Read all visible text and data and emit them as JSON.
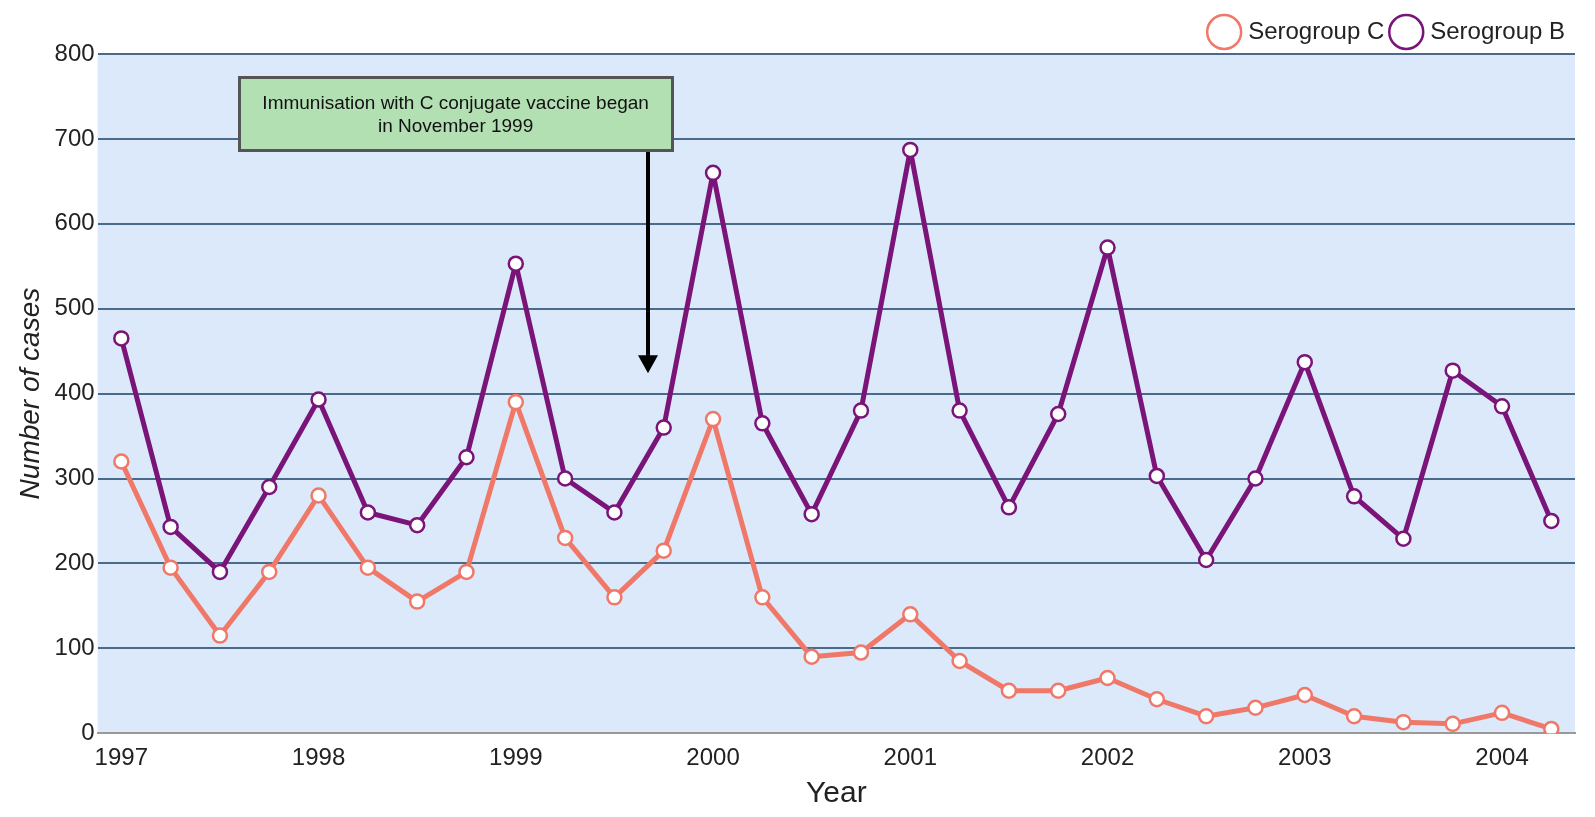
{
  "chart_data": {
    "type": "line",
    "xlabel": "Year",
    "ylabel": "Number of cases",
    "x": [
      1997,
      1997.25,
      1997.5,
      1997.75,
      1998,
      1998.25,
      1998.5,
      1998.75,
      1999,
      1999.25,
      1999.5,
      1999.75,
      2000,
      2000.25,
      2000.5,
      2000.75,
      2001,
      2001.25,
      2001.5,
      2001.75,
      2002,
      2002.25,
      2002.5,
      2002.75,
      2003,
      2003.25,
      2003.5,
      2003.75,
      2004,
      2004.25
    ],
    "series": [
      {
        "name": "Serogroup C",
        "color": "#f07868",
        "values": [
          320,
          195,
          115,
          190,
          280,
          195,
          155,
          190,
          390,
          230,
          160,
          215,
          370,
          160,
          90,
          95,
          140,
          85,
          50,
          50,
          65,
          40,
          20,
          30,
          45,
          20,
          13,
          11,
          24,
          5
        ]
      },
      {
        "name": "Serogroup B",
        "color": "#7a1478",
        "values": [
          465,
          243,
          190,
          290,
          393,
          260,
          245,
          325,
          553,
          300,
          260,
          360,
          660,
          365,
          258,
          380,
          687,
          380,
          266,
          376,
          572,
          303,
          204,
          300,
          437,
          279,
          229,
          427,
          385,
          250
        ]
      }
    ],
    "xlim": [
      1996.88,
      2004.37
    ],
    "xticks": [
      1997,
      1998,
      1999,
      2000,
      2001,
      2002,
      2003,
      2004
    ],
    "ylim": [
      0,
      800
    ],
    "yticks": [
      0,
      100,
      200,
      300,
      400,
      500,
      600,
      700,
      800
    ],
    "grid": "y",
    "legend": "top right",
    "marker": "circle",
    "line_style": "solid",
    "annotations": [
      "Immunisation with C conjugate vaccine began in November 1999"
    ]
  }
}
